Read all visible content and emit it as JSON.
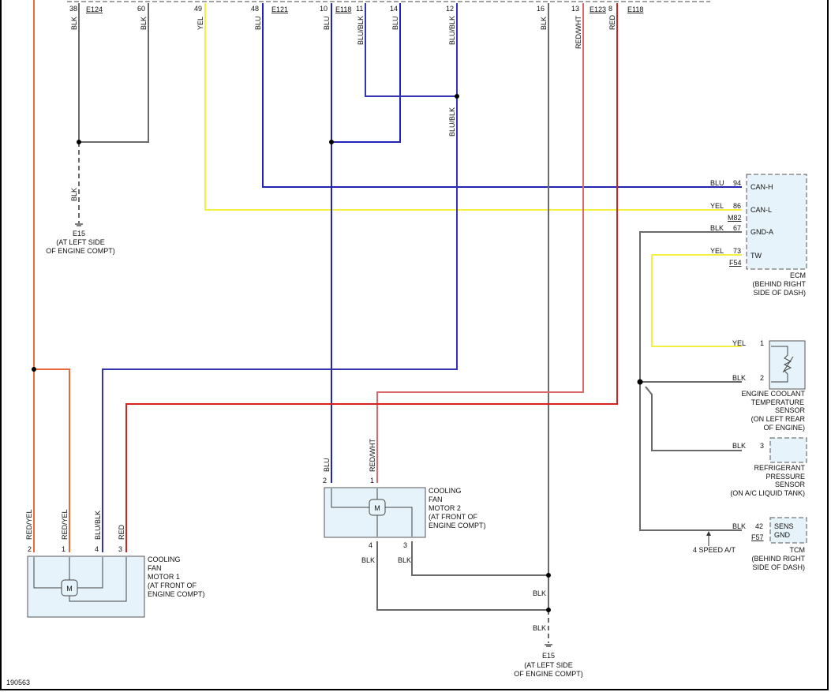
{
  "diagram_id": "190563",
  "top_connectors": [
    {
      "pin": "38",
      "wire": "BLK",
      "connector": "E124"
    },
    {
      "pin": "60",
      "wire": "BLK"
    },
    {
      "pin": "49",
      "wire": "YEL"
    },
    {
      "pin": "48",
      "wire": "BLU",
      "connector": "E121"
    },
    {
      "pin": "10",
      "wire": "BLU",
      "connector": "E118"
    },
    {
      "pin": "11",
      "wire": "BLU/BLK"
    },
    {
      "pin": "14",
      "wire": "BLU"
    },
    {
      "pin": "12",
      "wire": "BLU/BLK"
    },
    {
      "pin": "16",
      "wire": "BLK"
    },
    {
      "pin": "13",
      "wire": "RED/WHT",
      "connector": "E123"
    },
    {
      "pin": "8",
      "wire": "RED",
      "connector": "E118"
    }
  ],
  "mid_labels": {
    "blu_blk": "BLU/BLK",
    "blk_ground": "BLK"
  },
  "ground_left": {
    "id": "E15",
    "line1": "(AT LEFT SIDE",
    "line2": "OF ENGINE COMPT)"
  },
  "ground_bottom": {
    "id": "E15",
    "line1": "(AT LEFT SIDE",
    "line2": "OF ENGINE COMPT)",
    "wire1": "BLK",
    "wire2": "BLK"
  },
  "ecm": {
    "pins": [
      {
        "wire": "BLU",
        "pin": "94",
        "name": "CAN-H"
      },
      {
        "wire": "YEL",
        "pin": "86",
        "name": "CAN-L"
      },
      {
        "wire": "BLK",
        "pin": "67",
        "name": "GND-A"
      },
      {
        "wire": "YEL",
        "pin": "73",
        "name": "TW"
      }
    ],
    "connector1": "M82",
    "connector2": "F54",
    "name": "ECM",
    "loc1": "(BEHIND RIGHT",
    "loc2": "SIDE OF DASH)"
  },
  "ect": {
    "pins": [
      {
        "wire": "YEL",
        "pin": "1"
      },
      {
        "wire": "BLK",
        "pin": "2"
      }
    ],
    "l1": "ENGINE COOLANT",
    "l2": "TEMPERATURE",
    "l3": "SENSOR",
    "l4": "(ON LEFT REAR",
    "l5": "OF ENGINE)"
  },
  "refrig": {
    "wire": "BLK",
    "pin": "3",
    "l1": "REFRIGERANT",
    "l2": "PRESSURE",
    "l3": "SENSOR",
    "l4": "(ON A/C LIQUID TANK)"
  },
  "tcm": {
    "wire": "BLK",
    "pin": "42",
    "name1": "SENS",
    "name2": "GND",
    "connector": "F57",
    "note": "4 SPEED A/T",
    "l1": "TCM",
    "l2": "(BEHIND RIGHT",
    "l3": "SIDE OF DASH)"
  },
  "motor1": {
    "pins": [
      {
        "pin": "2",
        "wire": "RED/YEL"
      },
      {
        "pin": "1",
        "wire": "RED/YEL"
      },
      {
        "pin": "4",
        "wire": "BLU/BLK"
      },
      {
        "pin": "3",
        "wire": "RED"
      }
    ],
    "symbol": "M",
    "l1": "COOLING",
    "l2": "FAN",
    "l3": "MOTOR 1",
    "l4": "(AT FRONT OF",
    "l5": "ENGINE COMPT)"
  },
  "motor2": {
    "pins": [
      {
        "pin": "2",
        "wire": "BLU"
      },
      {
        "pin": "1",
        "wire": "RED/WHT"
      },
      {
        "pin": "4",
        "wire": "BLK"
      },
      {
        "pin": "3",
        "wire": "BLK"
      }
    ],
    "symbol": "M",
    "l1": "COOLING",
    "l2": "FAN",
    "l3": "MOTOR 2",
    "l4": "(AT FRONT OF",
    "l5": "ENGINE COMPT)"
  },
  "colors": {
    "BLK": "#6a6a6a",
    "BLU": "#2323b8",
    "YEL": "#f4f040",
    "RED": "#d62020",
    "RED/WHT": "#d86a6a",
    "RED/YEL": "#e86a3a",
    "component_fill": "#e6f3fb"
  }
}
